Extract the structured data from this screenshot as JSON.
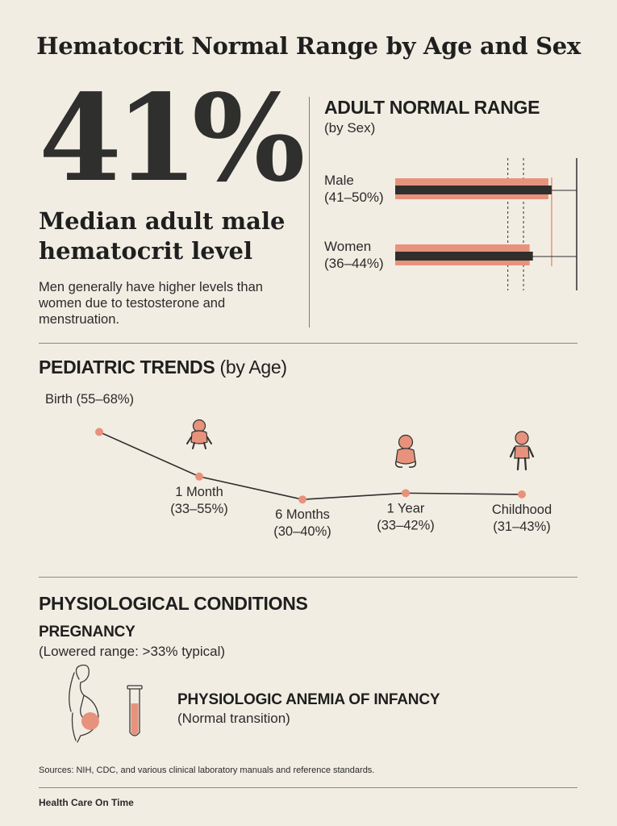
{
  "title": "Hematocrit Normal Range by Age and Sex",
  "hero": {
    "value": "41%",
    "subtitle": "Median adult male hematocrit level",
    "description": "Men generally have higher levels than women due to testosterone and menstruation."
  },
  "adult": {
    "heading": "ADULT NORMAL RANGE",
    "subheading": "(by Sex)"
  },
  "pediatric": {
    "heading": "PEDIATRIC TRENDS",
    "heading_suffix": "(by Age)"
  },
  "conditions": {
    "heading": "PHYSIOLOGICAL CONDITIONS",
    "pregnancy_title": "PREGNANCY",
    "pregnancy_note": "(Lowered range: >33% typical)",
    "anemia_title": "PHYSIOLOGIC ANEMIA OF INFANCY",
    "anemia_note": "(Normal transition)"
  },
  "sources": "Sources: NIH, CDC, and various clinical laboratory manuals and reference standards.",
  "brand": "Health Care On Time",
  "colors": {
    "accent": "#e7927c",
    "dark": "#2f2f2d",
    "background": "#f2ede3"
  },
  "icons": [
    "baby-crawling-icon",
    "baby-sitting-icon",
    "child-standing-icon",
    "pregnant-woman-icon",
    "test-tube-icon"
  ],
  "chart_data": [
    {
      "type": "bar",
      "orientation": "horizontal",
      "title": "ADULT NORMAL RANGE",
      "categories": [
        {
          "line1": "Male",
          "line2": "(41–50%)"
        },
        {
          "line1": "Women",
          "line2": "(36–44%)"
        }
      ],
      "ranges": [
        {
          "low": 41,
          "high": 50
        },
        {
          "low": 36,
          "high": 44
        }
      ],
      "xlim": [
        0,
        58
      ],
      "reference_lines": [
        36,
        41
      ]
    },
    {
      "type": "line",
      "title": "PEDIATRIC TRENDS (by Age)",
      "points": [
        {
          "label": "Birth",
          "range": "(55–68%)",
          "inline": true,
          "value": 61.5
        },
        {
          "label": "1 Month",
          "range": "(33–55%)",
          "value": 44
        },
        {
          "label": "6 Months",
          "range": "(30–40%)",
          "value": 35
        },
        {
          "label": "1 Year",
          "range": "(33–42%)",
          "value": 37.5
        },
        {
          "label": "Childhood",
          "range": "(31–43%)",
          "value": 37
        }
      ],
      "ylim": [
        30,
        68
      ]
    }
  ]
}
